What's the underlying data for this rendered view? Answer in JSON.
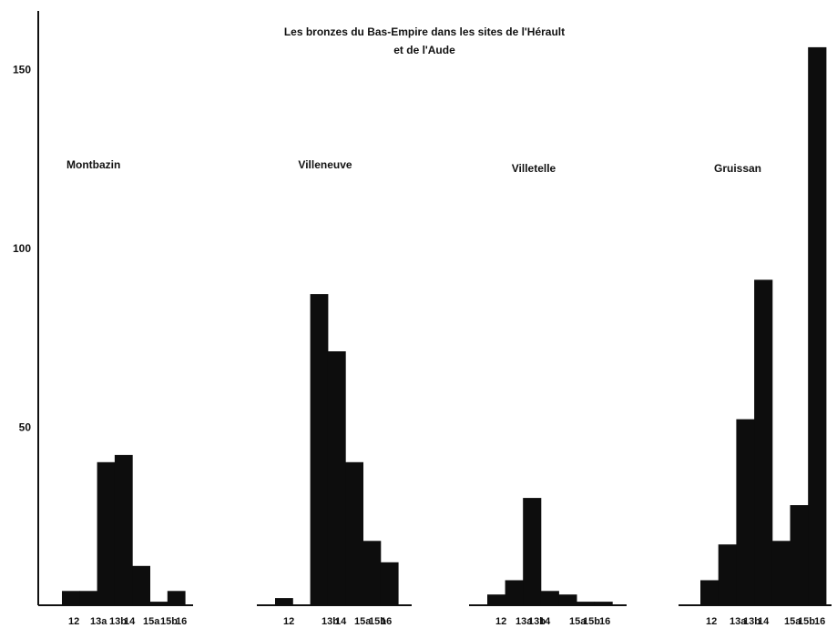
{
  "chart_data": {
    "type": "bar",
    "title_line1": "Les bronzes du Bas-Empire dans les sites de l'Hérault",
    "title_line2": "et de l'Aude",
    "ylim": [
      0,
      165
    ],
    "yticks": [
      50,
      100,
      150
    ],
    "grid": false,
    "categories": [
      "12",
      "13a",
      "13b",
      "14",
      "15a",
      "15b",
      "16"
    ],
    "panels": [
      {
        "site": "Montbazin",
        "values": [
          4,
          4,
          40,
          42,
          11,
          1,
          4
        ]
      },
      {
        "site": "Villeneuve",
        "values": [
          2,
          0,
          87,
          71,
          40,
          18,
          12
        ]
      },
      {
        "site": "Villetelle",
        "values": [
          3,
          7,
          30,
          4,
          3,
          1,
          1
        ]
      },
      {
        "site": "Gruissan",
        "values": [
          7,
          17,
          52,
          91,
          18,
          28,
          156
        ]
      }
    ],
    "tick_label_groups": [
      [
        "12",
        "13a",
        "13b",
        "14",
        "15a",
        "15b",
        "16"
      ],
      [
        "12",
        "13b",
        "14",
        "15a",
        "15b",
        "16"
      ],
      [
        "12",
        "13a",
        "13b",
        "14",
        "15a",
        "15b",
        "16"
      ],
      [
        "12",
        "13a",
        "13b",
        "14",
        "15a",
        "15b",
        "16"
      ]
    ]
  }
}
